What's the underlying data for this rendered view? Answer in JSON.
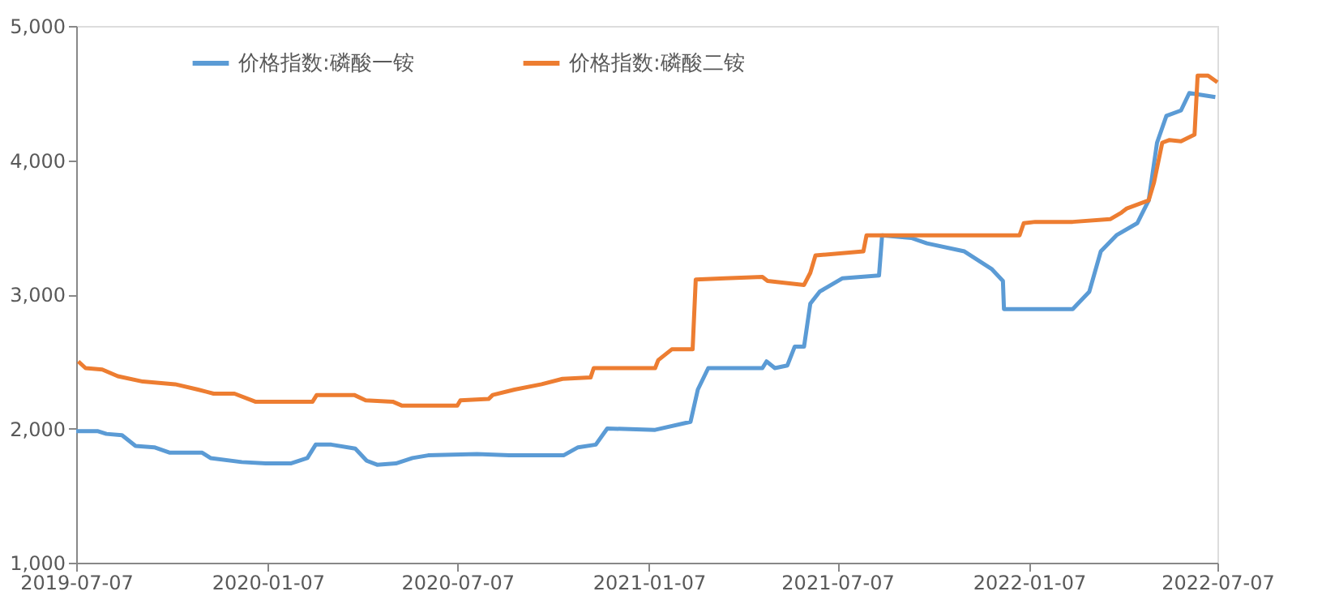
{
  "chart_data": {
    "type": "line",
    "legend": "top",
    "grid": false,
    "marker": "none",
    "line_style": "solid",
    "xlim": [
      "2019-07-07",
      "2022-07-07"
    ],
    "xticks": [
      "2019-07-07",
      "2020-01-07",
      "2020-07-07",
      "2021-01-07",
      "2021-07-07",
      "2022-01-07",
      "2022-07-07"
    ],
    "ylim": [
      1000,
      5000
    ],
    "yticks": [
      {
        "value": 1000,
        "label": "1,000"
      },
      {
        "value": 2000,
        "label": "2,000"
      },
      {
        "value": 3000,
        "label": "3,000"
      },
      {
        "value": 4000,
        "label": "4,000"
      },
      {
        "value": 5000,
        "label": "5,000"
      }
    ],
    "series": [
      {
        "name": "价格指数:磷酸一铵",
        "color": "#5b9bd5",
        "x": [
          "2019-07-07",
          "2019-07-28",
          "2019-08-05",
          "2019-08-20",
          "2019-09-02",
          "2019-09-20",
          "2019-10-05",
          "2019-11-05",
          "2019-11-13",
          "2019-12-13",
          "2020-01-05",
          "2020-01-29",
          "2020-02-14",
          "2020-02-22",
          "2020-03-08",
          "2020-03-31",
          "2020-04-11",
          "2020-04-21",
          "2020-05-09",
          "2020-05-25",
          "2020-06-09",
          "2020-07-26",
          "2020-08-26",
          "2020-10-17",
          "2020-10-31",
          "2020-11-17",
          "2020-11-28",
          "2021-01-13",
          "2021-02-16",
          "2021-02-23",
          "2021-03-05",
          "2021-04-26",
          "2021-04-30",
          "2021-05-08",
          "2021-05-20",
          "2021-05-27",
          "2021-06-05",
          "2021-06-11",
          "2021-06-20",
          "2021-07-12",
          "2021-08-16",
          "2021-08-19",
          "2021-09-16",
          "2021-10-01",
          "2021-11-06",
          "2021-12-02",
          "2021-12-13",
          "2021-12-14",
          "2022-02-18",
          "2022-03-06",
          "2022-03-17",
          "2022-04-01",
          "2022-04-21",
          "2022-05-02",
          "2022-05-10",
          "2022-05-19",
          "2022-06-02",
          "2022-06-10",
          "2022-07-05"
        ],
        "values": [
          1980,
          1980,
          1960,
          1950,
          1870,
          1860,
          1820,
          1820,
          1780,
          1750,
          1740,
          1740,
          1780,
          1880,
          1880,
          1850,
          1760,
          1730,
          1740,
          1780,
          1800,
          1810,
          1800,
          1800,
          1860,
          1880,
          2000,
          1990,
          2050,
          2290,
          2450,
          2450,
          2500,
          2450,
          2470,
          2610,
          2610,
          2930,
          3020,
          3120,
          3140,
          3440,
          3420,
          3380,
          3320,
          3190,
          3100,
          2890,
          2890,
          3020,
          3320,
          3440,
          3530,
          3700,
          4130,
          4330,
          4370,
          4500,
          4470
        ]
      },
      {
        "name": "价格指数:磷酸二铵",
        "color": "#ed7d31",
        "x": [
          "2019-07-09",
          "2019-07-16",
          "2019-08-01",
          "2019-08-16",
          "2019-09-09",
          "2019-10-10",
          "2019-11-01",
          "2019-11-16",
          "2019-12-06",
          "2019-12-26",
          "2020-02-19",
          "2020-02-23",
          "2020-03-30",
          "2020-04-10",
          "2020-05-06",
          "2020-05-15",
          "2020-07-07",
          "2020-07-10",
          "2020-08-06",
          "2020-08-10",
          "2020-08-31",
          "2020-09-26",
          "2020-10-16",
          "2020-11-12",
          "2020-11-15",
          "2021-01-13",
          "2021-01-16",
          "2021-01-29",
          "2021-02-18",
          "2021-02-21",
          "2021-03-21",
          "2021-04-26",
          "2021-05-01",
          "2021-06-05",
          "2021-06-11",
          "2021-06-16",
          "2021-08-01",
          "2021-08-04",
          "2021-12-29",
          "2022-01-02",
          "2022-01-13",
          "2022-02-18",
          "2022-03-26",
          "2022-04-06",
          "2022-04-11",
          "2022-05-02",
          "2022-05-07",
          "2022-05-15",
          "2022-05-22",
          "2022-06-02",
          "2022-06-15",
          "2022-06-18",
          "2022-06-28",
          "2022-07-07"
        ],
        "values": [
          2500,
          2450,
          2440,
          2390,
          2350,
          2330,
          2290,
          2260,
          2260,
          2200,
          2200,
          2250,
          2250,
          2210,
          2200,
          2170,
          2170,
          2210,
          2220,
          2250,
          2290,
          2330,
          2370,
          2380,
          2450,
          2450,
          2510,
          2590,
          2590,
          3110,
          3120,
          3130,
          3100,
          3070,
          3160,
          3290,
          3320,
          3440,
          3440,
          3530,
          3540,
          3540,
          3560,
          3610,
          3640,
          3700,
          3830,
          4130,
          4150,
          4140,
          4190,
          4630,
          4630,
          4580
        ]
      }
    ]
  }
}
